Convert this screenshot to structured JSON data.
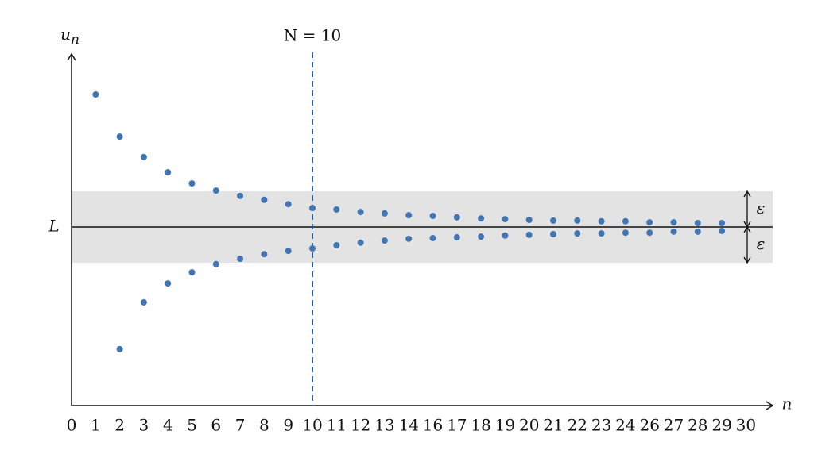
{
  "chart_data": {
    "type": "scatter",
    "y_label": {
      "base": "u",
      "sub": "n"
    },
    "x_label": "n",
    "categories": [
      "0",
      "1",
      "2",
      "3",
      "4",
      "5",
      "6",
      "7",
      "8",
      "9",
      "10",
      "11",
      "12",
      "13",
      "14",
      "16",
      "17",
      "18",
      "19",
      "20",
      "21",
      "22",
      "23",
      "24",
      "26",
      "27",
      "28",
      "29",
      "30"
    ],
    "series": [
      {
        "color": "#4275b4",
        "values": [
          null,
          3.71,
          2.53,
          1.96,
          1.53,
          1.22,
          1.02,
          0.87,
          0.76,
          0.64,
          0.53,
          0.49,
          0.42,
          0.38,
          0.33,
          0.31,
          0.27,
          0.24,
          0.22,
          0.2,
          0.18,
          0.18,
          0.16,
          0.16,
          0.13,
          0.13,
          0.11,
          0.11,
          null
        ]
      },
      {
        "color": "#4275b4",
        "values": [
          null,
          null,
          -3.42,
          -2.11,
          -1.58,
          -1.27,
          -1.04,
          -0.89,
          -0.76,
          -0.67,
          -0.6,
          -0.51,
          -0.44,
          -0.38,
          -0.33,
          -0.31,
          -0.29,
          -0.27,
          -0.24,
          -0.22,
          -0.2,
          -0.18,
          -0.18,
          -0.16,
          -0.16,
          -0.13,
          -0.13,
          -0.11,
          null
        ]
      }
    ],
    "ylim": [
      -5,
      4.8
    ],
    "yticks": [
      {
        "value": 0,
        "label": "L"
      }
    ],
    "band": [
      -1,
      1
    ],
    "band_color": "#e3e3e3",
    "band_labels": [
      "ε",
      "ε"
    ],
    "reference_line": {
      "at": "10",
      "label": "N = 10",
      "color": "#2b5c9e"
    }
  }
}
